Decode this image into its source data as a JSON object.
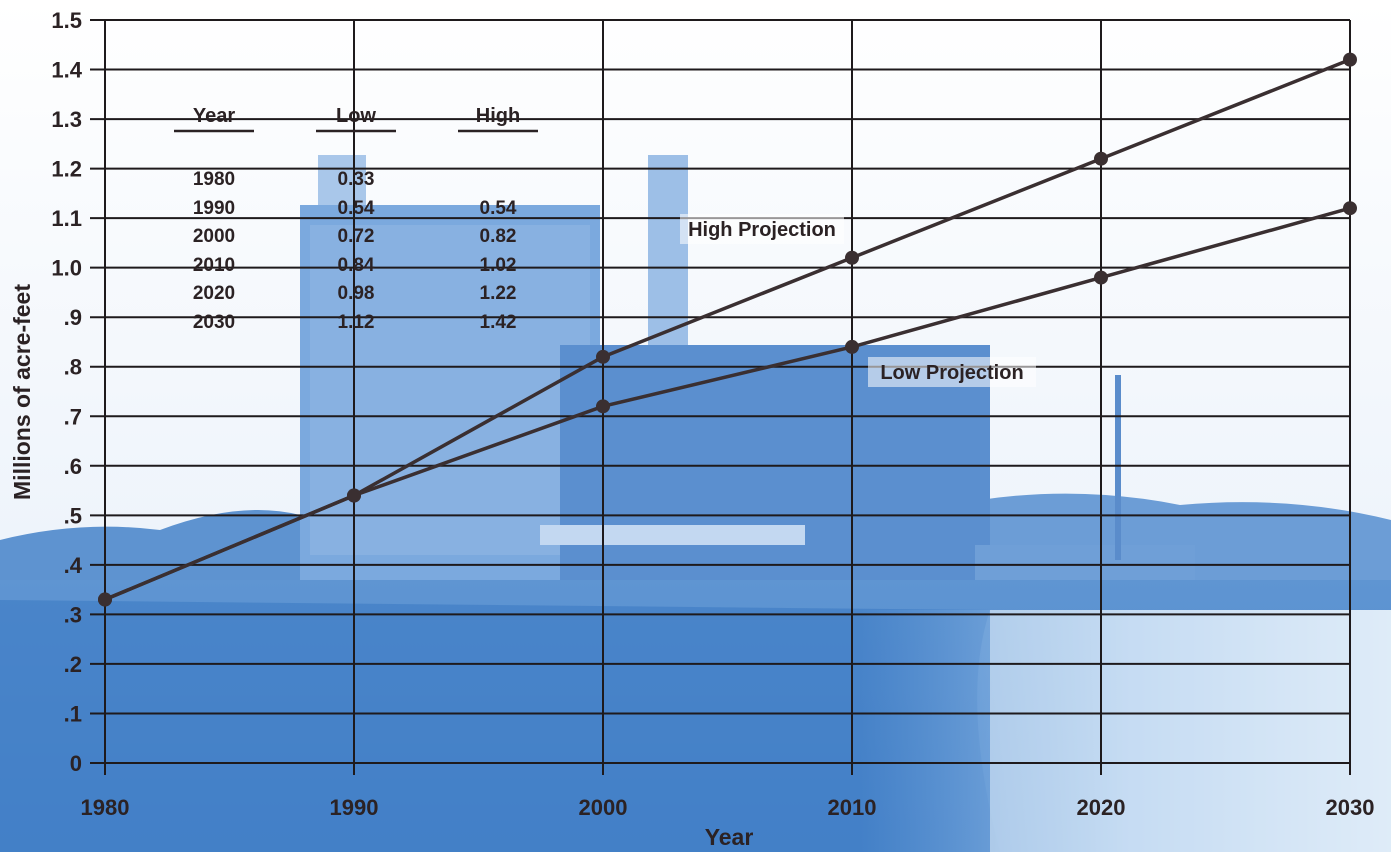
{
  "chart_data": {
    "type": "line",
    "xlabel": "Year",
    "ylabel": "Millions of acre-feet",
    "x": [
      1980,
      1990,
      2000,
      2010,
      2020,
      2030
    ],
    "xlim": [
      1980,
      2030
    ],
    "ylim": [
      0,
      1.5
    ],
    "x_ticks": [
      "1980",
      "1990",
      "2000",
      "2010",
      "2020",
      "2030"
    ],
    "y_ticks": [
      {
        "value": 0,
        "label": "0"
      },
      {
        "value": 0.1,
        "label": ".1"
      },
      {
        "value": 0.2,
        "label": ".2"
      },
      {
        "value": 0.3,
        "label": ".3"
      },
      {
        "value": 0.4,
        "label": ".4"
      },
      {
        "value": 0.5,
        "label": ".5"
      },
      {
        "value": 0.6,
        "label": ".6"
      },
      {
        "value": 0.7,
        "label": ".7"
      },
      {
        "value": 0.8,
        "label": ".8"
      },
      {
        "value": 0.9,
        "label": ".9"
      },
      {
        "value": 1.0,
        "label": "1.0"
      },
      {
        "value": 1.1,
        "label": "1.1"
      },
      {
        "value": 1.2,
        "label": "1.2"
      },
      {
        "value": 1.3,
        "label": "1.3"
      },
      {
        "value": 1.4,
        "label": "1.4"
      },
      {
        "value": 1.5,
        "label": "1.5"
      }
    ],
    "grid": true,
    "series": [
      {
        "name": "High Projection",
        "x": [
          1980,
          1990,
          2000,
          2010,
          2020,
          2030
        ],
        "values": [
          0.33,
          0.54,
          0.82,
          1.02,
          1.22,
          1.42
        ]
      },
      {
        "name": "Low Projection",
        "x": [
          1980,
          1990,
          2000,
          2010,
          2020,
          2030
        ],
        "values": [
          0.33,
          0.54,
          0.72,
          0.84,
          0.98,
          1.12
        ]
      }
    ],
    "table": {
      "headers": [
        "Year",
        "Low",
        "High"
      ],
      "rows": [
        [
          "1980",
          "0.33",
          ""
        ],
        [
          "1990",
          "0.54",
          "0.54"
        ],
        [
          "2000",
          "0.72",
          "0.82"
        ],
        [
          "2010",
          "0.84",
          "1.02"
        ],
        [
          "2020",
          "0.98",
          "1.22"
        ],
        [
          "2030",
          "1.12",
          "1.42"
        ]
      ]
    },
    "colors": {
      "line": "#3a2f31",
      "text": "#2b2224",
      "grid": "#1e1a1c",
      "photo_tint": "#6b9fd6"
    }
  }
}
